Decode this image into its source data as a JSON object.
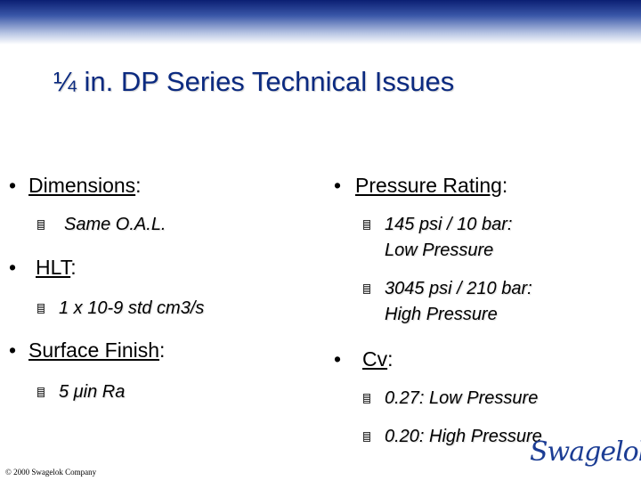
{
  "title": "¼ in. DP Series Technical Issues",
  "left": {
    "dimensions": {
      "label": "Dimensions",
      "items": [
        "Same O.A.L."
      ]
    },
    "hlt": {
      "label": "HLT",
      "items": [
        "1 x 10-9 std cm3/s"
      ]
    },
    "surface": {
      "label": "Surface Finish",
      "items": [
        "5 μin Ra"
      ]
    }
  },
  "right": {
    "pressure": {
      "label": "Pressure Rating",
      "items": [
        {
          "line1": "145 psi / 10 bar:",
          "line2": "Low Pressure"
        },
        {
          "line1": "3045 psi / 210 bar:",
          "line2": "High Pressure"
        }
      ]
    },
    "cv": {
      "label": "Cv",
      "items": [
        "0.27: Low Pressure",
        "0.20: High Pressure"
      ]
    }
  },
  "footer": "© 2000 Swagelok Company",
  "logo": "Swagelok",
  "bullet_char": "•",
  "colon": ":",
  "colors": {
    "title": "#0b2a80",
    "banner_dark": "#0b1f73",
    "logo": "#1c3d94"
  }
}
